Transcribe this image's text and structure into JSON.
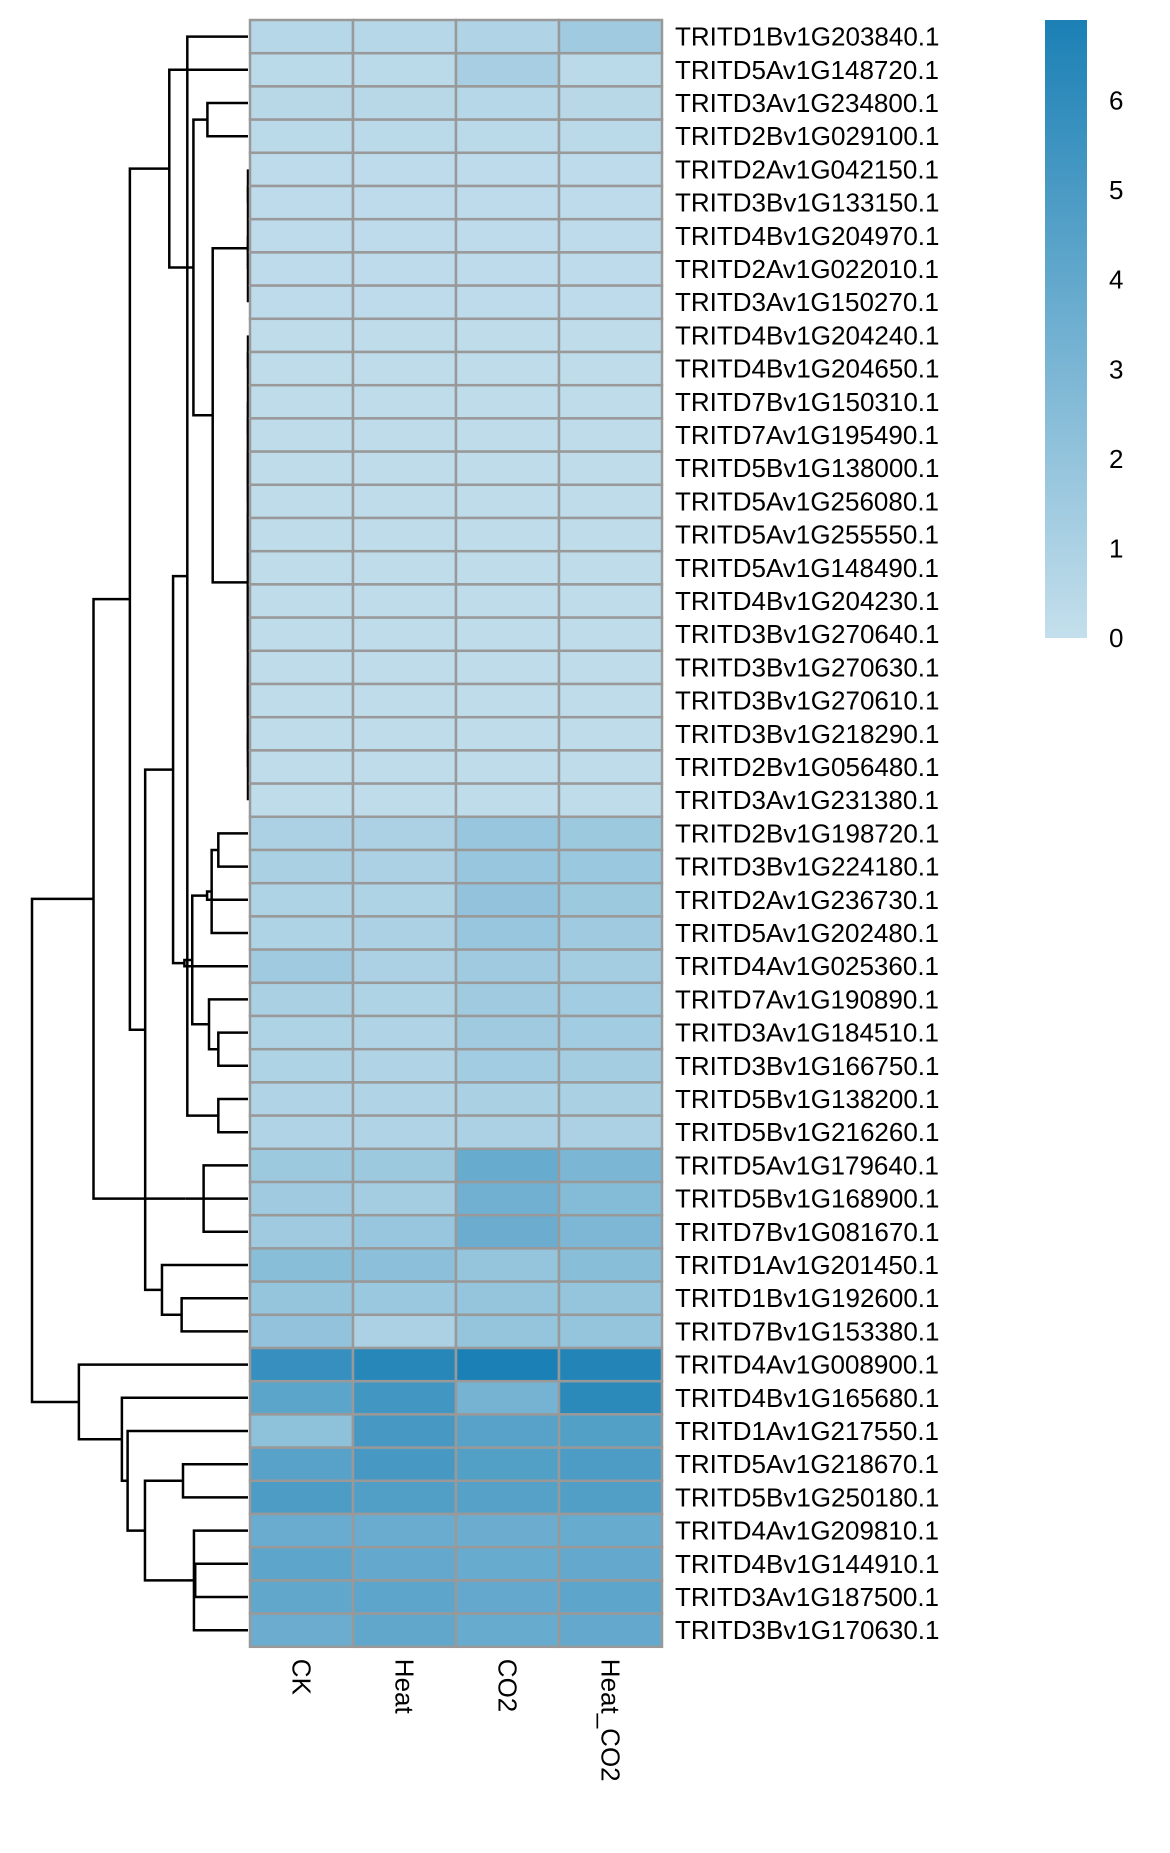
{
  "chart_data": {
    "type": "heatmap",
    "title": "",
    "xlabel": "",
    "ylabel": "",
    "columns": [
      "CK",
      "Heat",
      "CO2",
      "Heat_CO2"
    ],
    "rows": [
      "TRITD1Bv1G203840.1",
      "TRITD5Av1G148720.1",
      "TRITD3Av1G234800.1",
      "TRITD2Bv1G029100.1",
      "TRITD2Av1G042150.1",
      "TRITD3Bv1G133150.1",
      "TRITD4Bv1G204970.1",
      "TRITD2Av1G022010.1",
      "TRITD3Av1G150270.1",
      "TRITD4Bv1G204240.1",
      "TRITD4Bv1G204650.1",
      "TRITD7Bv1G150310.1",
      "TRITD7Av1G195490.1",
      "TRITD5Bv1G138000.1",
      "TRITD5Av1G256080.1",
      "TRITD5Av1G255550.1",
      "TRITD5Av1G148490.1",
      "TRITD4Bv1G204230.1",
      "TRITD3Bv1G270640.1",
      "TRITD3Bv1G270630.1",
      "TRITD3Bv1G270610.1",
      "TRITD3Bv1G218290.1",
      "TRITD2Bv1G056480.1",
      "TRITD3Av1G231380.1",
      "TRITD2Bv1G198720.1",
      "TRITD3Bv1G224180.1",
      "TRITD2Av1G236730.1",
      "TRITD5Av1G202480.1",
      "TRITD4Av1G025360.1",
      "TRITD7Av1G190890.1",
      "TRITD3Av1G184510.1",
      "TRITD3Bv1G166750.1",
      "TRITD5Bv1G138200.1",
      "TRITD5Bv1G216260.1",
      "TRITD5Av1G179640.1",
      "TRITD5Bv1G168900.1",
      "TRITD7Bv1G081670.1",
      "TRITD1Av1G201450.1",
      "TRITD1Bv1G192600.1",
      "TRITD7Bv1G153380.1",
      "TRITD4Av1G008900.1",
      "TRITD4Bv1G165680.1",
      "TRITD1Av1G217550.1",
      "TRITD5Av1G218670.1",
      "TRITD5Bv1G250180.1",
      "TRITD4Av1G209810.1",
      "TRITD4Bv1G144910.1",
      "TRITD3Av1G187500.1",
      "TRITD3Bv1G170630.1"
    ],
    "values": [
      [
        0.6,
        0.6,
        0.8,
        1.5
      ],
      [
        0.4,
        0.4,
        1.2,
        0.4
      ],
      [
        0.5,
        0.5,
        0.6,
        0.5
      ],
      [
        0.4,
        0.4,
        0.4,
        0.4
      ],
      [
        0.3,
        0.3,
        0.3,
        0.3
      ],
      [
        0.3,
        0.3,
        0.3,
        0.3
      ],
      [
        0.3,
        0.3,
        0.3,
        0.3
      ],
      [
        0.3,
        0.3,
        0.3,
        0.3
      ],
      [
        0.3,
        0.3,
        0.3,
        0.3
      ],
      [
        0.2,
        0.2,
        0.2,
        0.2
      ],
      [
        0.2,
        0.2,
        0.2,
        0.2
      ],
      [
        0.2,
        0.2,
        0.2,
        0.2
      ],
      [
        0.2,
        0.2,
        0.2,
        0.2
      ],
      [
        0.2,
        0.2,
        0.2,
        0.2
      ],
      [
        0.2,
        0.2,
        0.2,
        0.2
      ],
      [
        0.2,
        0.2,
        0.2,
        0.2
      ],
      [
        0.2,
        0.2,
        0.2,
        0.2
      ],
      [
        0.2,
        0.2,
        0.2,
        0.2
      ],
      [
        0.2,
        0.2,
        0.2,
        0.2
      ],
      [
        0.2,
        0.2,
        0.2,
        0.2
      ],
      [
        0.2,
        0.2,
        0.2,
        0.2
      ],
      [
        0.2,
        0.2,
        0.2,
        0.2
      ],
      [
        0.2,
        0.2,
        0.2,
        0.2
      ],
      [
        0.2,
        0.2,
        0.2,
        0.2
      ],
      [
        1.0,
        1.0,
        1.8,
        1.6
      ],
      [
        1.1,
        1.0,
        1.8,
        1.7
      ],
      [
        0.9,
        0.9,
        2.0,
        1.6
      ],
      [
        0.9,
        1.0,
        1.8,
        1.5
      ],
      [
        1.5,
        1.0,
        1.5,
        1.3
      ],
      [
        1.1,
        0.9,
        1.5,
        1.4
      ],
      [
        0.9,
        0.8,
        1.5,
        1.4
      ],
      [
        0.9,
        0.8,
        1.4,
        1.3
      ],
      [
        0.8,
        0.8,
        1.1,
        1.1
      ],
      [
        0.8,
        0.8,
        1.0,
        1.0
      ],
      [
        1.6,
        1.6,
        3.8,
        3.0
      ],
      [
        1.5,
        1.3,
        3.4,
        2.6
      ],
      [
        1.5,
        1.8,
        3.6,
        2.9
      ],
      [
        2.4,
        2.3,
        1.9,
        2.4
      ],
      [
        1.9,
        1.7,
        1.9,
        1.9
      ],
      [
        2.0,
        1.0,
        1.9,
        1.9
      ],
      [
        5.8,
        6.4,
        6.9,
        6.6
      ],
      [
        4.3,
        5.3,
        3.2,
        6.2
      ],
      [
        2.2,
        5.1,
        4.4,
        4.6
      ],
      [
        4.4,
        5.1,
        4.6,
        4.9
      ],
      [
        4.9,
        4.7,
        4.5,
        4.7
      ],
      [
        3.7,
        3.7,
        3.6,
        3.8
      ],
      [
        4.2,
        3.9,
        3.8,
        3.9
      ],
      [
        4.1,
        4.2,
        3.9,
        4.2
      ],
      [
        3.6,
        4.1,
        3.8,
        3.9
      ]
    ],
    "color_scale": {
      "min": 0,
      "max": 6.9,
      "low_color": "#c4dfec",
      "high_color": "#1b80b5"
    },
    "legend": {
      "ticks": [
        0,
        1,
        2,
        3,
        4,
        5,
        6
      ],
      "placement": "top-right"
    },
    "grid": true
  }
}
